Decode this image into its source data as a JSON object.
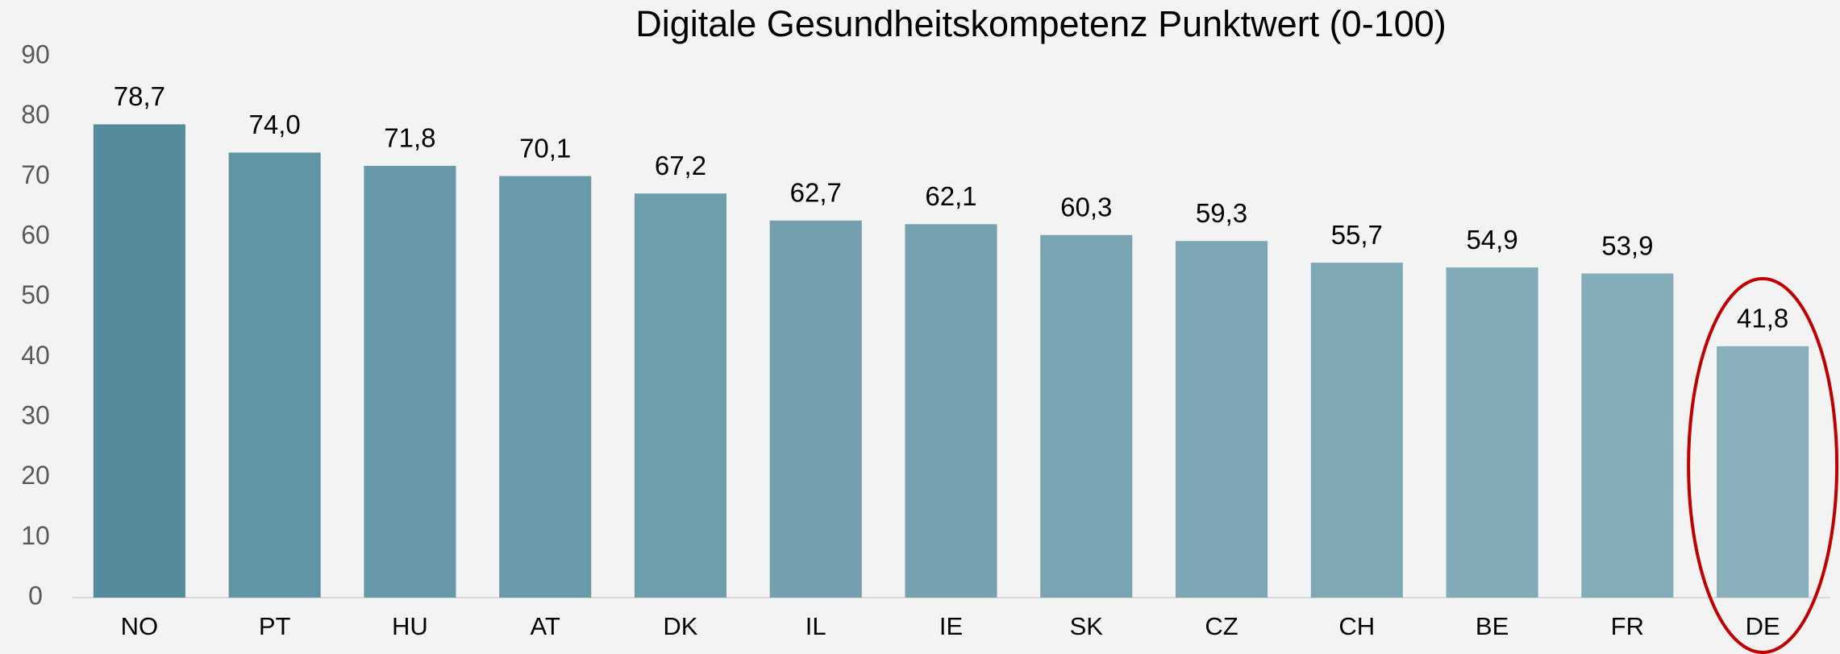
{
  "chart_data": {
    "type": "bar",
    "title": "Digitale Gesundheitskompetenz Punktwert (0-100)",
    "categories": [
      "NO",
      "PT",
      "HU",
      "AT",
      "DK",
      "IL",
      "IE",
      "SK",
      "CZ",
      "CH",
      "BE",
      "FR",
      "DE"
    ],
    "values": [
      78.7,
      74.0,
      71.8,
      70.1,
      67.2,
      62.7,
      62.1,
      60.3,
      59.3,
      55.7,
      54.9,
      53.9,
      41.8
    ],
    "value_labels": [
      "78,7",
      "74,0",
      "71,8",
      "70,1",
      "67,2",
      "62,7",
      "62,1",
      "60,3",
      "59,3",
      "55,7",
      "54,9",
      "53,9",
      "41,8"
    ],
    "colors": [
      "#568b9d",
      "#6095a6",
      "#6698a8",
      "#699aaa",
      "#6e9dac",
      "#739fae",
      "#76a2b0",
      "#79a4b2",
      "#7ca6b4",
      "#7fa8b5",
      "#82aab7",
      "#85acb9",
      "#8aafbc"
    ],
    "ylim": [
      0,
      90
    ],
    "yticks": [
      0,
      10,
      20,
      30,
      40,
      50,
      60,
      70,
      80,
      90
    ],
    "grid": false
  }
}
